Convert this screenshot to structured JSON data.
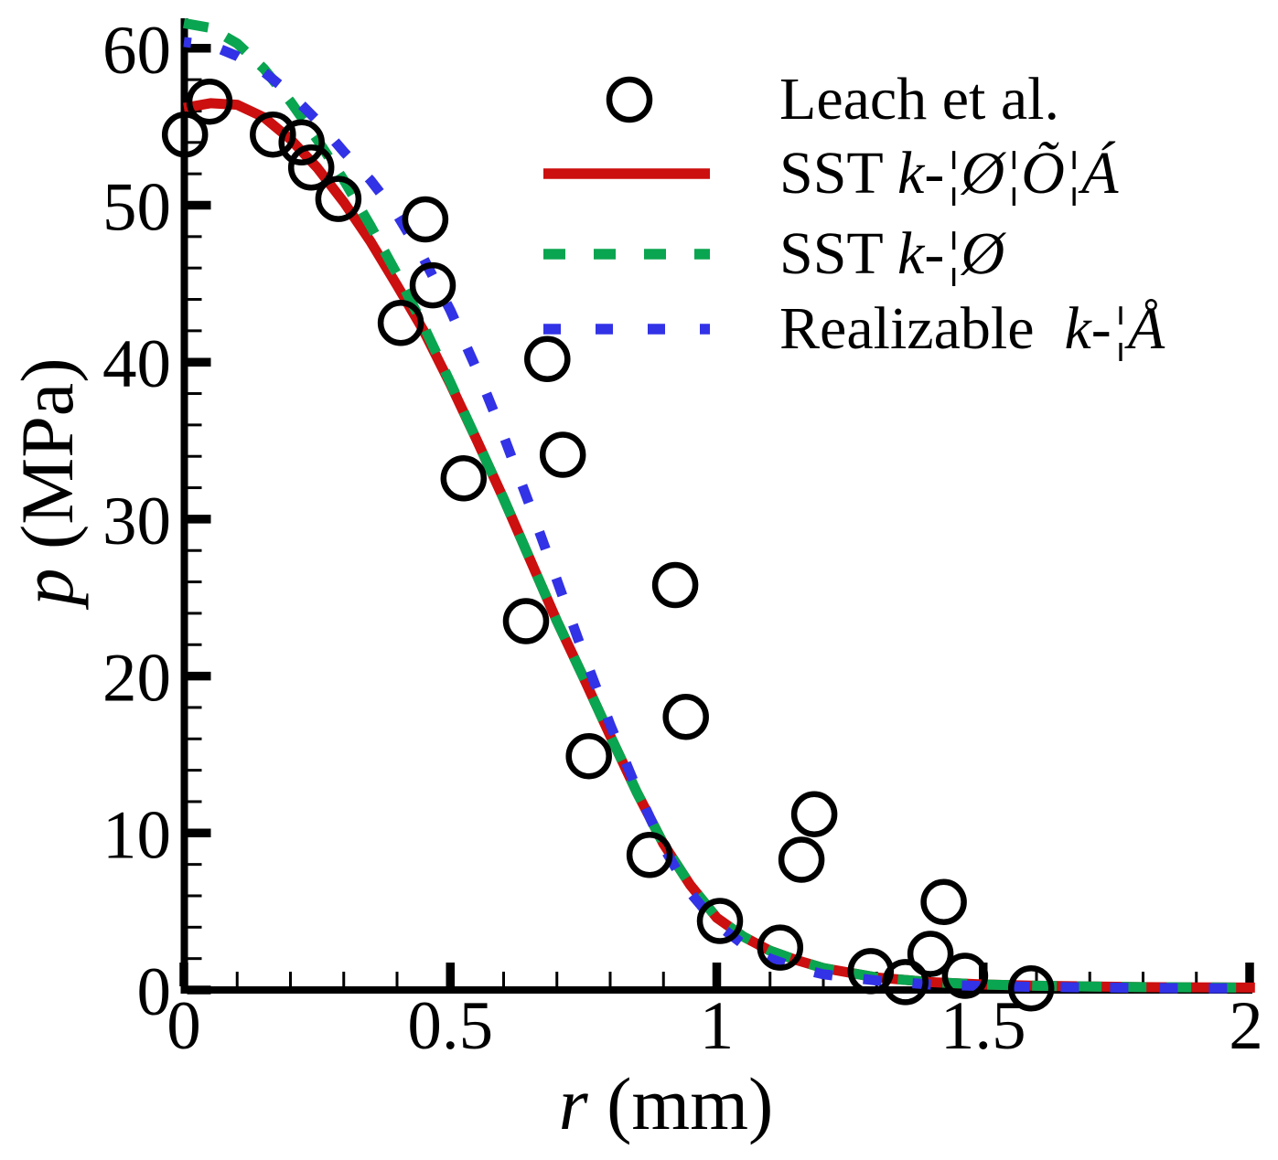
{
  "figure": {
    "background": "#ffffff"
  },
  "axes": {
    "x": {
      "title_var": "r",
      "title_rest": " (mm)",
      "min": 0,
      "max": 2,
      "tick_values": [
        0,
        0.5,
        1,
        1.5,
        2
      ],
      "tick_labels": [
        "0",
        "0.5",
        "1",
        "1.5",
        "2"
      ],
      "minor_step": 0.1
    },
    "y": {
      "title_var": "p",
      "title_rest": " (MPa)",
      "min": 0,
      "max": 60,
      "tick_values": [
        0,
        10,
        20,
        30,
        40,
        50,
        60
      ],
      "tick_labels": [
        "0",
        "10",
        "20",
        "30",
        "40",
        "50",
        "60"
      ],
      "minor_step": 2
    }
  },
  "legend": {
    "items": [
      {
        "kind": "marker",
        "prefix": "Leach et al.",
        "math": "",
        "color": "#000000"
      },
      {
        "kind": "line-solid",
        "prefix": "SST ",
        "math": "k-¦Ø¦Õ¦Á",
        "color": "#cc0f0f"
      },
      {
        "kind": "line-dashed",
        "prefix": "SST ",
        "math": "k-¦Ø",
        "color": "#0aa550"
      },
      {
        "kind": "line-dashed",
        "prefix": "Realizable  ",
        "math": "k-¦Å",
        "color": "#3232e6"
      }
    ]
  },
  "chart_data": {
    "type": "line+scatter",
    "title": "",
    "xlabel": "r (mm)",
    "ylabel": "p (MPa)",
    "xlim": [
      0,
      2
    ],
    "ylim": [
      0,
      62
    ],
    "grid": false,
    "legend_position": "upper right",
    "scatter": {
      "name": "Leach et al.",
      "marker": "open-circle",
      "color": "#000000",
      "points": [
        [
          0.002,
          54.5
        ],
        [
          0.048,
          56.6
        ],
        [
          0.167,
          54.5
        ],
        [
          0.221,
          54.0
        ],
        [
          0.239,
          52.4
        ],
        [
          0.29,
          50.4
        ],
        [
          0.453,
          49.1
        ],
        [
          0.467,
          44.9
        ],
        [
          0.407,
          42.5
        ],
        [
          0.682,
          40.2
        ],
        [
          0.711,
          34.1
        ],
        [
          0.525,
          32.6
        ],
        [
          0.922,
          25.8
        ],
        [
          0.642,
          23.5
        ],
        [
          0.942,
          17.4
        ],
        [
          0.76,
          14.9
        ],
        [
          1.183,
          11.2
        ],
        [
          1.159,
          8.3
        ],
        [
          0.874,
          8.6
        ],
        [
          1.006,
          4.4
        ],
        [
          1.119,
          2.7
        ],
        [
          1.426,
          5.6
        ],
        [
          1.401,
          2.3
        ],
        [
          1.289,
          1.2
        ],
        [
          1.354,
          0.5
        ],
        [
          1.466,
          0.9
        ],
        [
          1.59,
          0.1
        ]
      ]
    },
    "series": [
      {
        "name": "SST k-¦Ø¦Õ¦Á",
        "style": "solid",
        "color": "#cc0f0f",
        "points": [
          [
            0,
            56.2
          ],
          [
            0.05,
            56.5
          ],
          [
            0.1,
            56.4
          ],
          [
            0.15,
            55.6
          ],
          [
            0.2,
            54.2
          ],
          [
            0.25,
            52.4
          ],
          [
            0.3,
            50.2
          ],
          [
            0.35,
            47.7
          ],
          [
            0.4,
            44.9
          ],
          [
            0.45,
            42.0
          ],
          [
            0.5,
            38.6
          ],
          [
            0.55,
            35.0
          ],
          [
            0.6,
            31.3
          ],
          [
            0.65,
            27.4
          ],
          [
            0.7,
            23.5
          ],
          [
            0.75,
            19.9
          ],
          [
            0.8,
            16.2
          ],
          [
            0.85,
            12.6
          ],
          [
            0.9,
            9.3
          ],
          [
            0.95,
            6.7
          ],
          [
            1.0,
            4.6
          ],
          [
            1.05,
            3.4
          ],
          [
            1.1,
            2.5
          ],
          [
            1.15,
            1.9
          ],
          [
            1.2,
            1.4
          ],
          [
            1.3,
            0.8
          ],
          [
            1.4,
            0.5
          ],
          [
            1.5,
            0.35
          ],
          [
            1.6,
            0.27
          ],
          [
            1.8,
            0.18
          ],
          [
            2.01,
            0.15
          ]
        ]
      },
      {
        "name": "SST k-¦Ø",
        "style": "dashed",
        "color": "#0aa550",
        "points": [
          [
            0,
            61.6
          ],
          [
            0.05,
            61.3
          ],
          [
            0.1,
            60.3
          ],
          [
            0.15,
            58.7
          ],
          [
            0.2,
            56.6
          ],
          [
            0.25,
            54.2
          ],
          [
            0.3,
            51.6
          ],
          [
            0.35,
            48.7
          ],
          [
            0.4,
            45.6
          ],
          [
            0.45,
            42.3
          ],
          [
            0.5,
            38.7
          ],
          [
            0.55,
            35.0
          ],
          [
            0.6,
            31.3
          ],
          [
            0.65,
            27.4
          ],
          [
            0.7,
            23.5
          ],
          [
            0.75,
            19.9
          ],
          [
            0.8,
            16.2
          ],
          [
            0.85,
            12.6
          ],
          [
            0.9,
            9.3
          ],
          [
            0.95,
            6.7
          ],
          [
            1.0,
            4.6
          ],
          [
            1.05,
            3.4
          ],
          [
            1.1,
            2.5
          ],
          [
            1.15,
            1.9
          ],
          [
            1.2,
            1.4
          ],
          [
            1.3,
            0.8
          ],
          [
            1.4,
            0.5
          ],
          [
            1.5,
            0.35
          ],
          [
            1.6,
            0.27
          ],
          [
            1.8,
            0.18
          ],
          [
            2.01,
            0.15
          ]
        ]
      },
      {
        "name": "Realizable k-¦Å",
        "style": "dashed",
        "color": "#3232e6",
        "points": [
          [
            0,
            60.4
          ],
          [
            0.05,
            60.2
          ],
          [
            0.1,
            59.5
          ],
          [
            0.15,
            58.5
          ],
          [
            0.2,
            57.1
          ],
          [
            0.25,
            55.4
          ],
          [
            0.3,
            53.4
          ],
          [
            0.35,
            51.6
          ],
          [
            0.4,
            49.4
          ],
          [
            0.45,
            46.6
          ],
          [
            0.5,
            43.3
          ],
          [
            0.55,
            39.5
          ],
          [
            0.6,
            35.3
          ],
          [
            0.65,
            30.8
          ],
          [
            0.7,
            26.1
          ],
          [
            0.75,
            21.4
          ],
          [
            0.8,
            16.9
          ],
          [
            0.85,
            12.8
          ],
          [
            0.9,
            9.1
          ],
          [
            0.95,
            6.2
          ],
          [
            1.0,
            4.2
          ],
          [
            1.05,
            2.9
          ],
          [
            1.1,
            2.0
          ],
          [
            1.15,
            1.4
          ],
          [
            1.2,
            1.0
          ],
          [
            1.3,
            0.6
          ],
          [
            1.4,
            0.35
          ],
          [
            1.5,
            0.25
          ],
          [
            1.6,
            0.2
          ],
          [
            1.8,
            0.13
          ],
          [
            2.01,
            0.1
          ]
        ]
      }
    ]
  }
}
